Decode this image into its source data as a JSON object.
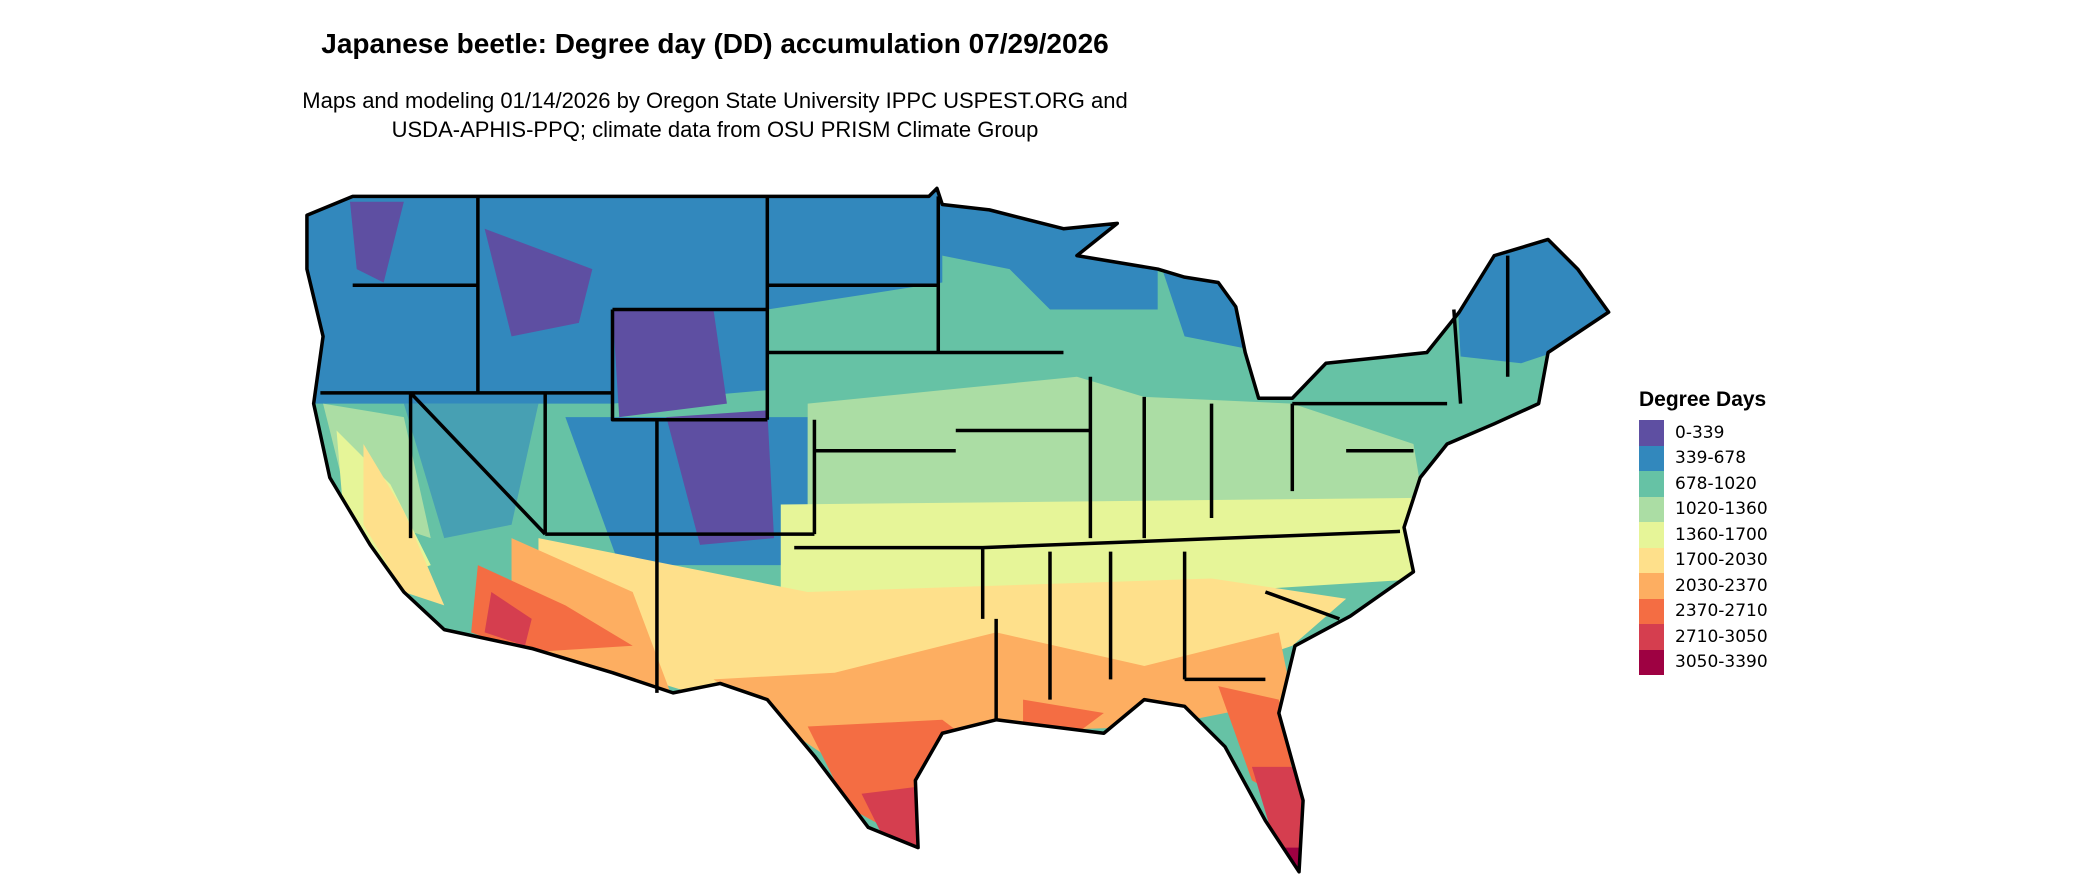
{
  "title": "Japanese beetle: Degree day (DD) accumulation 07/29/2026",
  "subtitle_line1": "Maps and modeling 01/14/2026 by Oregon State University IPPC USPEST.ORG and",
  "subtitle_line2": "USDA-APHIS-PPQ; climate data from OSU PRISM Climate Group",
  "map": {
    "region": "Contiguous United States",
    "borders": "state"
  },
  "legend": {
    "title": "Degree Days",
    "items": [
      {
        "label": "0-339",
        "color": "#5e4fa2"
      },
      {
        "label": "339-678",
        "color": "#3288bd"
      },
      {
        "label": "678-1020",
        "color": "#66c2a5"
      },
      {
        "label": "1020-1360",
        "color": "#abdda4"
      },
      {
        "label": "1360-1700",
        "color": "#e6f598"
      },
      {
        "label": "1700-2030",
        "color": "#fee08b"
      },
      {
        "label": "2030-2370",
        "color": "#fdae61"
      },
      {
        "label": "2370-2710",
        "color": "#f46d43"
      },
      {
        "label": "2710-3050",
        "color": "#d53e4f"
      },
      {
        "label": "3050-3390",
        "color": "#9e0142"
      }
    ]
  }
}
